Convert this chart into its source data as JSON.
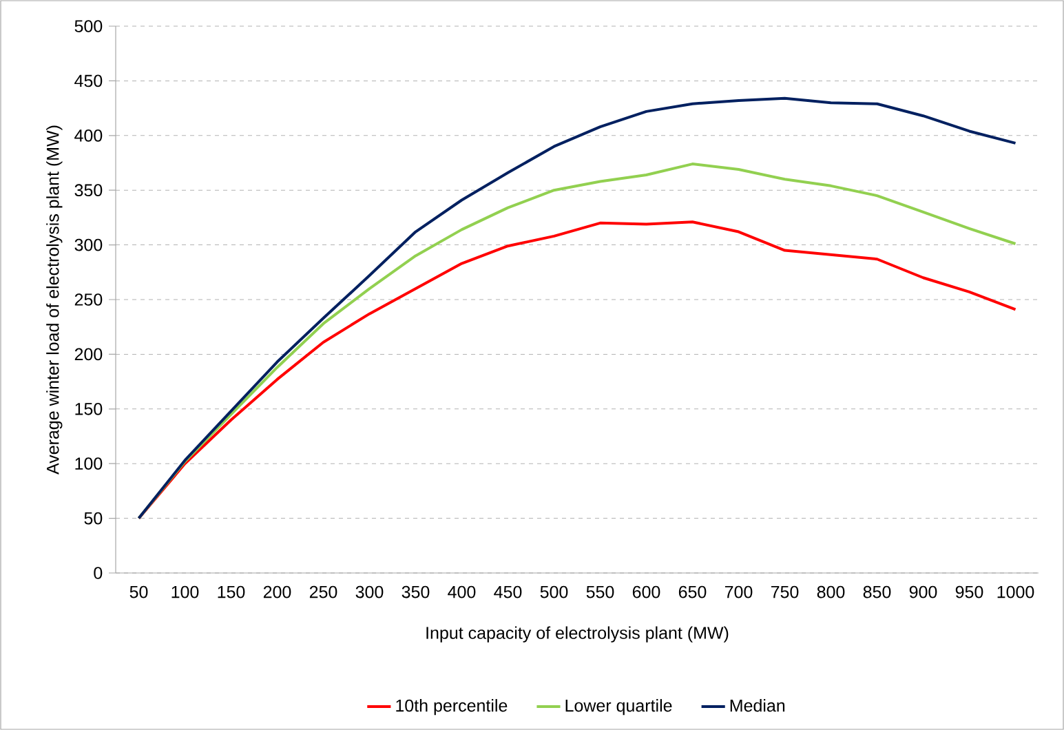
{
  "chart_data": {
    "type": "line",
    "xlabel": "Input capacity of electrolysis plant (MW)",
    "ylabel": "Average winter load of electrolysis plant (MW)",
    "categories": [
      "50",
      "100",
      "150",
      "200",
      "250",
      "300",
      "350",
      "400",
      "450",
      "500",
      "550",
      "600",
      "650",
      "700",
      "750",
      "800",
      "850",
      "900",
      "950",
      "1000"
    ],
    "ylim": [
      0,
      500
    ],
    "yticks": [
      0,
      50,
      100,
      150,
      200,
      250,
      300,
      350,
      400,
      450,
      500
    ],
    "grid": "y",
    "legend": "bottom",
    "marker": "none",
    "line_style": "solid",
    "series": [
      {
        "name": "10th percentile",
        "color": "#ff0000",
        "values": [
          50,
          100,
          140,
          177,
          211,
          237,
          260,
          283,
          299,
          308,
          320,
          319,
          321,
          312,
          295,
          291,
          287,
          270,
          257,
          241
        ]
      },
      {
        "name": "Lower quartile",
        "color": "#92d050",
        "values": [
          50,
          102,
          145,
          188,
          228,
          260,
          290,
          314,
          334,
          350,
          358,
          364,
          374,
          369,
          360,
          354,
          345,
          330,
          315,
          301
        ]
      },
      {
        "name": "Median",
        "color": "#002060",
        "values": [
          50,
          103,
          148,
          193,
          233,
          272,
          312,
          341,
          366,
          390,
          408,
          422,
          429,
          432,
          434,
          430,
          429,
          418,
          404,
          393
        ]
      }
    ]
  }
}
